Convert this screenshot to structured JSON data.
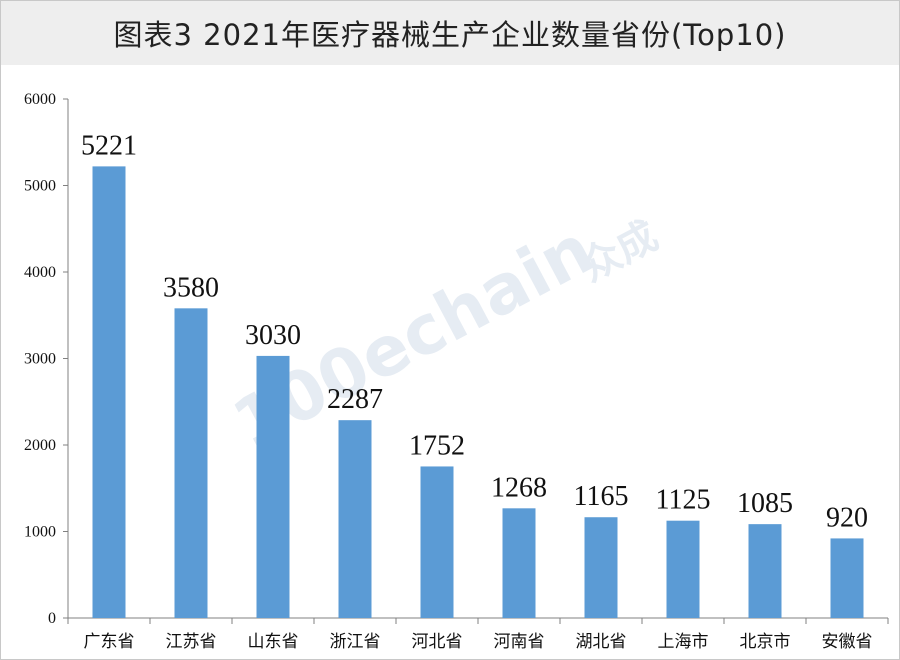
{
  "title": "图表3  2021年医疗器械生产企业数量省份(Top10)",
  "watermark": {
    "text": "100echain",
    "brand": "众成"
  },
  "colors": {
    "bar": "#5b9bd5",
    "title_bg": "#eeeeee",
    "axis": "#808080"
  },
  "chart_data": {
    "type": "bar",
    "title": "图表3  2021年医疗器械生产企业数量省份(Top10)",
    "xlabel": "",
    "ylabel": "",
    "categories": [
      "广东省",
      "江苏省",
      "山东省",
      "浙江省",
      "河北省",
      "河南省",
      "湖北省",
      "上海市",
      "北京市",
      "安徽省"
    ],
    "values": [
      5221,
      3580,
      3030,
      2287,
      1752,
      1268,
      1165,
      1125,
      1085,
      920
    ],
    "ylim": [
      0,
      6000
    ],
    "yticks": [
      0,
      1000,
      2000,
      3000,
      4000,
      5000,
      6000
    ],
    "grid": false,
    "legend": "none"
  }
}
